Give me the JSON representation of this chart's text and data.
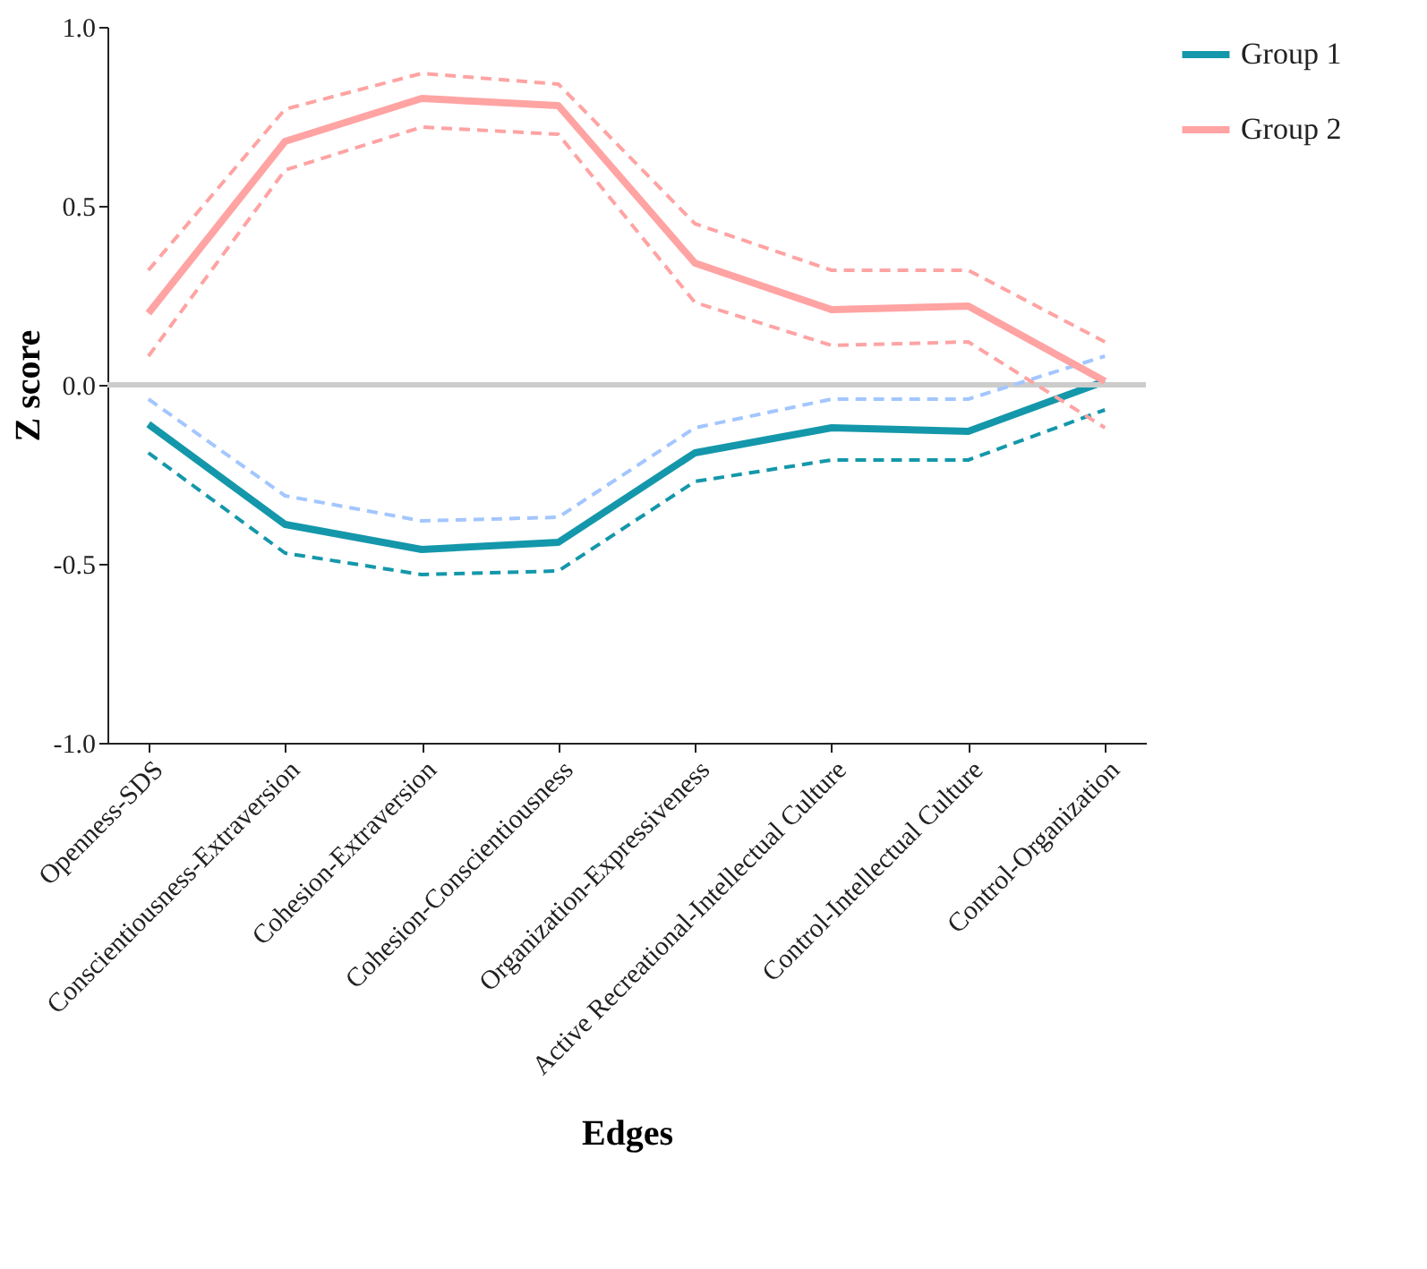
{
  "chart_data": {
    "type": "line",
    "xlabel": "Edges",
    "ylabel": "Z score",
    "categories": [
      "Openness-SDS",
      "Conscientiousness-Extraversion",
      "Cohesion-Extraversion",
      "Cohesion-Conscientiousness",
      "Organization-Expressiveness",
      "Active Recreational-Intellectual Culture",
      "Control-Intellectual Culture",
      "Control-Organization"
    ],
    "series": [
      {
        "name": "Group 1",
        "color": "#1497aa",
        "values": [
          -0.11,
          -0.39,
          -0.46,
          -0.44,
          -0.19,
          -0.12,
          -0.13,
          0.01
        ]
      },
      {
        "color": "#a3c6ff",
        "line_style": "dashed",
        "values": [
          -0.04,
          -0.31,
          -0.38,
          -0.37,
          -0.12,
          -0.04,
          -0.04,
          0.08
        ]
      },
      {
        "color": "#1497aa",
        "line_style": "dashed",
        "values": [
          -0.19,
          -0.47,
          -0.53,
          -0.52,
          -0.27,
          -0.21,
          -0.21,
          -0.07
        ]
      },
      {
        "name": "Group 2",
        "color": "#ffa3a3",
        "values": [
          0.2,
          0.68,
          0.8,
          0.78,
          0.34,
          0.21,
          0.22,
          0.01
        ]
      },
      {
        "color": "#ffa3a3",
        "line_style": "dashed",
        "values": [
          0.32,
          0.77,
          0.87,
          0.84,
          0.45,
          0.32,
          0.32,
          0.12
        ]
      },
      {
        "color": "#ffa3a3",
        "line_style": "dashed",
        "values": [
          0.08,
          0.6,
          0.72,
          0.7,
          0.23,
          0.11,
          0.12,
          -0.12
        ]
      }
    ],
    "ylim": [
      -1,
      1
    ],
    "yticks": [
      {
        "value": -1,
        "label": "-1.0"
      },
      {
        "value": -0.5,
        "label": "-0.5"
      },
      {
        "value": 0,
        "label": "0.0"
      },
      {
        "value": 0.5,
        "label": "0.5"
      },
      {
        "value": 1,
        "label": "1.0"
      }
    ],
    "ref_lines": [
      {
        "axis": "y",
        "value": 0,
        "color": "#cccccc"
      }
    ],
    "legend": "top right"
  }
}
